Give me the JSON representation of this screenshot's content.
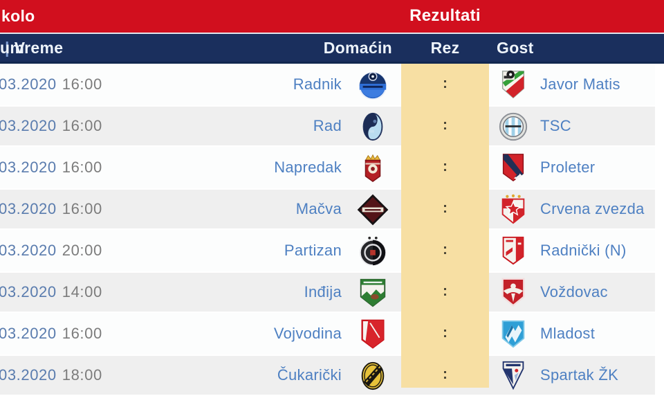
{
  "header": {
    "round_label": "kolo",
    "results_title": "Rezultati"
  },
  "columns": {
    "datetime_left": "um",
    "datetime_pipe": "|",
    "datetime_right": "Vreme",
    "home": "Domaćin",
    "result": "Rez",
    "away": "Gost"
  },
  "result_separator": ":",
  "colors": {
    "header_red": "#d10f1e",
    "header_navy": "#1a2f5d",
    "result_column_bg": "#f7dfa3",
    "team_link_blue": "#4e80c2",
    "date_link_blue": "#5a7cae",
    "time_gray": "#7c7c7c",
    "alt_row_gray": "#efefef"
  },
  "rows": [
    {
      "date": "03.2020",
      "time": "16:00",
      "home": "Radnik",
      "home_logo": "radnik-crest",
      "away": "Javor Matis",
      "away_logo": "javor-crest"
    },
    {
      "date": "03.2020",
      "time": "16:00",
      "home": "Rad",
      "home_logo": "rad-crest",
      "away": "TSC",
      "away_logo": "tsc-crest"
    },
    {
      "date": "03.2020",
      "time": "16:00",
      "home": "Napredak",
      "home_logo": "napredak-crest",
      "away": "Proleter",
      "away_logo": "proleter-crest"
    },
    {
      "date": "03.2020",
      "time": "16:00",
      "home": "Mačva",
      "home_logo": "macva-crest",
      "away": "Crvena zvezda",
      "away_logo": "crvena-zvezda-crest"
    },
    {
      "date": "03.2020",
      "time": "20:00",
      "home": "Partizan",
      "home_logo": "partizan-crest",
      "away": "Radnički (N)",
      "away_logo": "radnicki-nis-crest"
    },
    {
      "date": "03.2020",
      "time": "14:00",
      "home": "Inđija",
      "home_logo": "indjija-crest",
      "away": "Voždovac",
      "away_logo": "vozdovac-crest"
    },
    {
      "date": "03.2020",
      "time": "16:00",
      "home": "Vojvodina",
      "home_logo": "vojvodina-crest",
      "away": "Mladost",
      "away_logo": "mladost-crest"
    },
    {
      "date": "03.2020",
      "time": "18:00",
      "home": "Čukarički",
      "home_logo": "cukaricki-crest",
      "away": "Spartak ŽK",
      "away_logo": "spartak-zk-crest"
    }
  ]
}
